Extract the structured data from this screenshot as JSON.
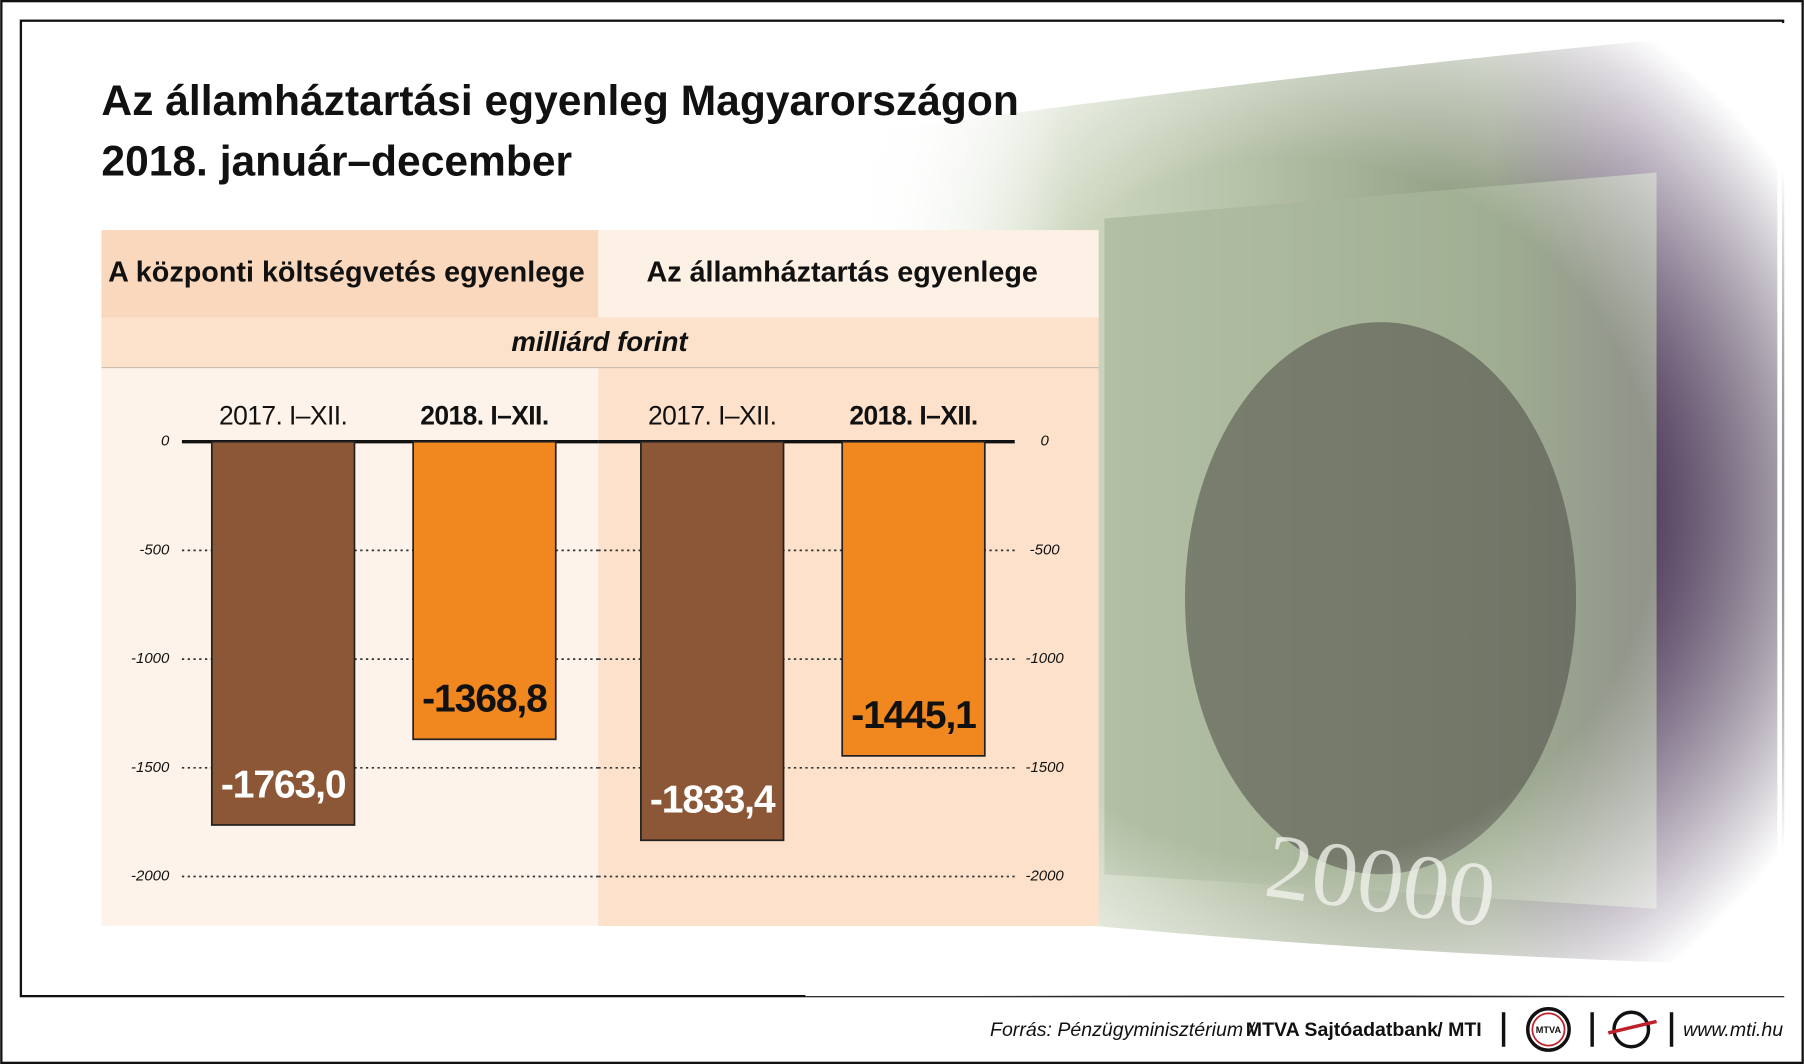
{
  "header": {
    "title": "Az államháztartási egyenleg Magyarországon",
    "subtitle": "2018. január–december"
  },
  "unit": "milliárd forint",
  "chart_data": [
    {
      "type": "bar",
      "title": "A központi költségvetés egyenlege",
      "categories": [
        "2017. I–XII.",
        "2018. I–XII."
      ],
      "values": [
        -1763.0,
        -1368.8
      ],
      "value_labels": [
        "-1763,0",
        "-1368,8"
      ],
      "colors": [
        "#8b5736",
        "#f0871f"
      ],
      "label_colors": [
        "#ffffff",
        "#111111"
      ],
      "ylim": [
        -2000,
        0
      ],
      "yticks": [
        0,
        -500,
        -1000,
        -1500,
        -2000
      ],
      "grid": true,
      "tick_side": "left"
    },
    {
      "type": "bar",
      "title": "Az államháztartás egyenlege",
      "categories": [
        "2017. I–XII.",
        "2018. I–XII."
      ],
      "values": [
        -1833.4,
        -1445.1
      ],
      "value_labels": [
        "-1833,4",
        "-1445,1"
      ],
      "colors": [
        "#8b5736",
        "#f0871f"
      ],
      "label_colors": [
        "#ffffff",
        "#111111"
      ],
      "ylim": [
        -2000,
        0
      ],
      "yticks": [
        0,
        -500,
        -1000,
        -1500,
        -2000
      ],
      "grid": true,
      "tick_side": "right"
    }
  ],
  "footer": {
    "source": "Forrás: Pénzügyminisztérium /",
    "bank": "MTVA Sajtóadatbank",
    "agency": "/ MTI",
    "logo": "MTVA",
    "url": "www.mti.hu"
  }
}
